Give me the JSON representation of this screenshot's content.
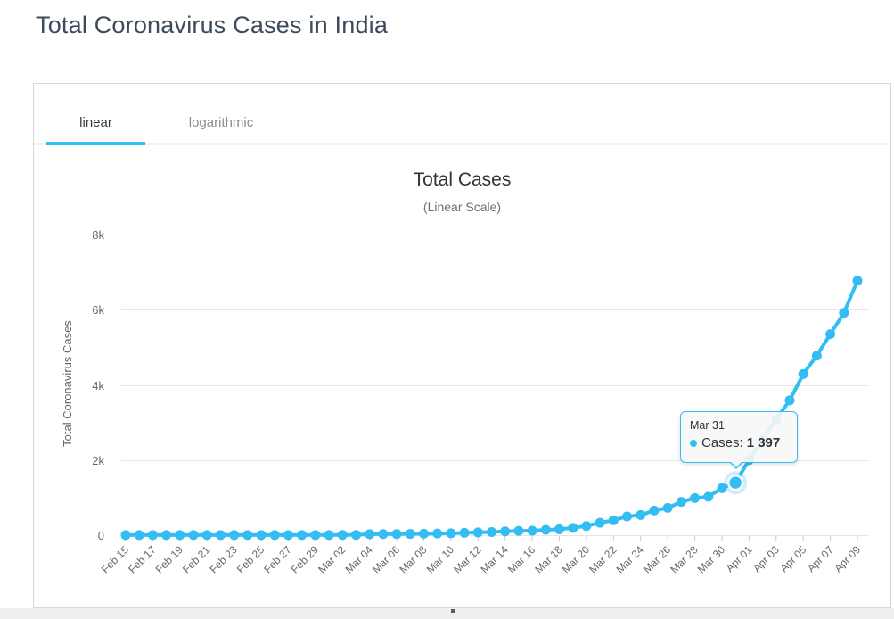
{
  "page": {
    "title": "Total Coronavirus Cases in India"
  },
  "tabs": [
    {
      "label": "linear",
      "active": true
    },
    {
      "label": "logarithmic",
      "active": false
    }
  ],
  "tooltip": {
    "date": "Mar 31",
    "label": "Cases:",
    "value": "1 397"
  },
  "chart_data": {
    "type": "line",
    "title": "Total Cases",
    "subtitle": "(Linear Scale)",
    "ylabel": "Total Coronavirus Cases",
    "series_name": "Cases",
    "color": "#33bdf2",
    "grid_color": "#e6e6e6",
    "label_color": "#666666",
    "ylim": [
      0,
      8000
    ],
    "yticks": [
      {
        "value": 0,
        "label": "0"
      },
      {
        "value": 2000,
        "label": "2k"
      },
      {
        "value": 4000,
        "label": "4k"
      },
      {
        "value": 6000,
        "label": "6k"
      },
      {
        "value": 8000,
        "label": "8k"
      }
    ],
    "x": [
      "Feb 15",
      "Feb 16",
      "Feb 17",
      "Feb 18",
      "Feb 19",
      "Feb 20",
      "Feb 21",
      "Feb 22",
      "Feb 23",
      "Feb 24",
      "Feb 25",
      "Feb 26",
      "Feb 27",
      "Feb 28",
      "Feb 29",
      "Mar 01",
      "Mar 02",
      "Mar 03",
      "Mar 04",
      "Mar 05",
      "Mar 06",
      "Mar 07",
      "Mar 08",
      "Mar 09",
      "Mar 10",
      "Mar 11",
      "Mar 12",
      "Mar 13",
      "Mar 14",
      "Mar 15",
      "Mar 16",
      "Mar 17",
      "Mar 18",
      "Mar 19",
      "Mar 20",
      "Mar 21",
      "Mar 22",
      "Mar 23",
      "Mar 24",
      "Mar 25",
      "Mar 26",
      "Mar 27",
      "Mar 28",
      "Mar 29",
      "Mar 30",
      "Mar 31",
      "Apr 01",
      "Apr 02",
      "Apr 03",
      "Apr 04",
      "Apr 05",
      "Apr 06",
      "Apr 07",
      "Apr 08",
      "Apr 09"
    ],
    "x_tick_labels": [
      "Feb 15",
      "Feb 17",
      "Feb 19",
      "Feb 21",
      "Feb 23",
      "Feb 25",
      "Feb 27",
      "Feb 29",
      "Mar 02",
      "Mar 04",
      "Mar 06",
      "Mar 08",
      "Mar 10",
      "Mar 12",
      "Mar 14",
      "Mar 16",
      "Mar 18",
      "Mar 20",
      "Mar 22",
      "Mar 24",
      "Mar 26",
      "Mar 28",
      "Mar 30",
      "Apr 01",
      "Apr 03",
      "Apr 05",
      "Apr 07",
      "Apr 09"
    ],
    "values": [
      3,
      3,
      3,
      3,
      3,
      3,
      3,
      3,
      3,
      3,
      3,
      3,
      3,
      3,
      3,
      3,
      5,
      6,
      28,
      30,
      31,
      34,
      39,
      44,
      50,
      62,
      73,
      82,
      102,
      113,
      119,
      142,
      156,
      194,
      244,
      330,
      396,
      499,
      536,
      657,
      727,
      887,
      987,
      1024,
      1251,
      1397,
      1998,
      2543,
      3082,
      3588,
      4289,
      4778,
      5351,
      5916,
      6771
    ],
    "highlight_index": 45,
    "legend": "off",
    "grid": "horizontal"
  }
}
